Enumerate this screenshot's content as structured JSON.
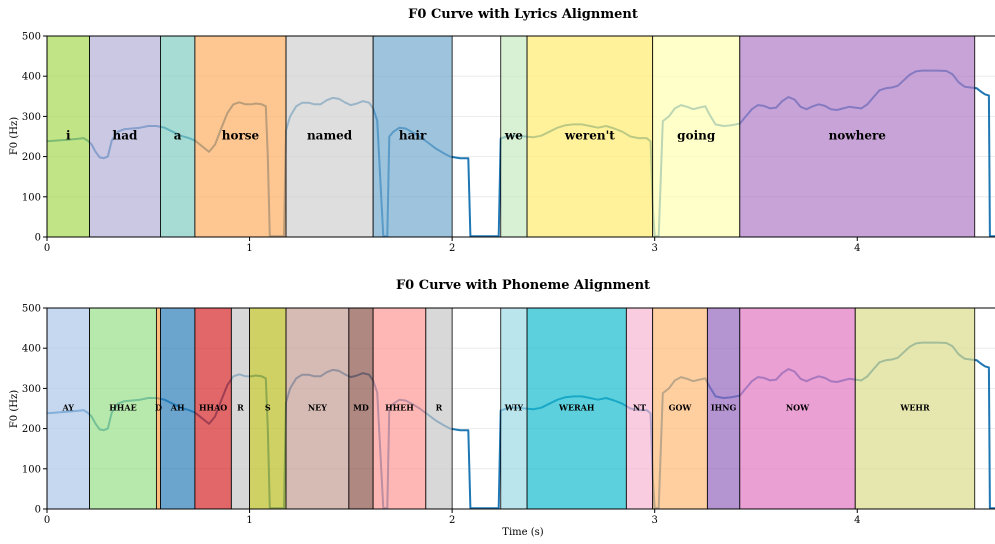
{
  "chart_data": [
    {
      "type": "line",
      "title": "F0 Curve with Lyrics Alignment",
      "xlabel": "",
      "ylabel": "F0 (Hz)",
      "xlim": [
        0,
        4.68
      ],
      "ylim": [
        0,
        500
      ],
      "xticks": [
        0,
        1,
        2,
        3,
        4
      ],
      "yticks": [
        0,
        100,
        200,
        300,
        400,
        500
      ],
      "grid": "horizontal",
      "segments": [
        {
          "label": "i",
          "start": 0.0,
          "end": 0.21,
          "color": "#a6d854"
        },
        {
          "label": "had",
          "start": 0.21,
          "end": 0.56,
          "color": "#b3b0d6"
        },
        {
          "label": "a",
          "start": 0.56,
          "end": 0.73,
          "color": "#80cdc1"
        },
        {
          "label": "horse",
          "start": 0.73,
          "end": 1.18,
          "color": "#fdae61"
        },
        {
          "label": "named",
          "start": 1.18,
          "end": 1.61,
          "color": "#d0d0d0"
        },
        {
          "label": "hair",
          "start": 1.61,
          "end": 2.0,
          "color": "#74a9cf"
        },
        {
          "label": "we",
          "start": 2.24,
          "end": 2.37,
          "color": "#c7e9c0"
        },
        {
          "label": "weren't",
          "start": 2.37,
          "end": 2.99,
          "color": "#ffed6f"
        },
        {
          "label": "going",
          "start": 2.99,
          "end": 3.42,
          "color": "#ffffb3"
        },
        {
          "label": "nowhere",
          "start": 3.42,
          "end": 4.58,
          "color": "#b07cc6"
        }
      ]
    },
    {
      "type": "line",
      "title": "F0 Curve with Phoneme Alignment",
      "xlabel": "Time (s)",
      "ylabel": "F0 (Hz)",
      "xlim": [
        0,
        4.68
      ],
      "ylim": [
        0,
        500
      ],
      "xticks": [
        0,
        1,
        2,
        3,
        4
      ],
      "yticks": [
        0,
        100,
        200,
        300,
        400,
        500
      ],
      "grid": "horizontal",
      "segments": [
        {
          "label": "AY",
          "start": 0.0,
          "end": 0.21,
          "color": "#aec7e8"
        },
        {
          "label": "HHAE",
          "start": 0.21,
          "end": 0.54,
          "color": "#98df8a"
        },
        {
          "label": "D",
          "start": 0.54,
          "end": 0.56,
          "color": "#ff9f43"
        },
        {
          "label": "AH",
          "start": 0.56,
          "end": 0.73,
          "color": "#2c7fb8"
        },
        {
          "label": "HHAO",
          "start": 0.73,
          "end": 0.91,
          "color": "#d62728"
        },
        {
          "label": "R",
          "start": 0.91,
          "end": 1.0,
          "color": "#c7c7c7"
        },
        {
          "label": "S",
          "start": 1.0,
          "end": 1.18,
          "color": "#bcbd22"
        },
        {
          "label": "NEY",
          "start": 1.18,
          "end": 1.49,
          "color": "#c49c94"
        },
        {
          "label": "MD",
          "start": 1.49,
          "end": 1.61,
          "color": "#8c564b"
        },
        {
          "label": "HHEH",
          "start": 1.61,
          "end": 1.87,
          "color": "#ff9896"
        },
        {
          "label": "R",
          "start": 1.87,
          "end": 2.0,
          "color": "#c7c7c7"
        },
        {
          "label": "WIY",
          "start": 2.24,
          "end": 2.37,
          "color": "#9edae5"
        },
        {
          "label": "WERAH",
          "start": 2.37,
          "end": 2.86,
          "color": "#17becf"
        },
        {
          "label": "NT",
          "start": 2.86,
          "end": 2.99,
          "color": "#f7b6d2"
        },
        {
          "label": "GOW",
          "start": 2.99,
          "end": 3.26,
          "color": "#ffbb78"
        },
        {
          "label": "IHNG",
          "start": 3.26,
          "end": 3.42,
          "color": "#9467bd"
        },
        {
          "label": "NOW",
          "start": 3.42,
          "end": 3.99,
          "color": "#e377c2"
        },
        {
          "label": "WEHR",
          "start": 3.99,
          "end": 4.58,
          "color": "#dbdb8d"
        }
      ]
    }
  ],
  "f0_curve": {
    "color": "#1f77b4",
    "points": [
      [
        0.0,
        238
      ],
      [
        0.05,
        240
      ],
      [
        0.1,
        242
      ],
      [
        0.15,
        244
      ],
      [
        0.18,
        246
      ],
      [
        0.2,
        240
      ],
      [
        0.22,
        230
      ],
      [
        0.24,
        212
      ],
      [
        0.26,
        198
      ],
      [
        0.28,
        196
      ],
      [
        0.3,
        200
      ],
      [
        0.32,
        240
      ],
      [
        0.35,
        262
      ],
      [
        0.38,
        268
      ],
      [
        0.42,
        270
      ],
      [
        0.46,
        272
      ],
      [
        0.5,
        276
      ],
      [
        0.54,
        276
      ],
      [
        0.58,
        272
      ],
      [
        0.62,
        262
      ],
      [
        0.66,
        252
      ],
      [
        0.7,
        246
      ],
      [
        0.73,
        240
      ],
      [
        0.76,
        228
      ],
      [
        0.78,
        220
      ],
      [
        0.8,
        212
      ],
      [
        0.83,
        230
      ],
      [
        0.86,
        270
      ],
      [
        0.89,
        308
      ],
      [
        0.92,
        330
      ],
      [
        0.95,
        335
      ],
      [
        0.98,
        330
      ],
      [
        1.01,
        330
      ],
      [
        1.03,
        332
      ],
      [
        1.06,
        330
      ],
      [
        1.08,
        325
      ],
      [
        1.09,
        200
      ],
      [
        1.1,
        2
      ],
      [
        1.17,
        2
      ],
      [
        1.18,
        265
      ],
      [
        1.2,
        300
      ],
      [
        1.23,
        325
      ],
      [
        1.26,
        334
      ],
      [
        1.29,
        334
      ],
      [
        1.32,
        330
      ],
      [
        1.35,
        330
      ],
      [
        1.38,
        340
      ],
      [
        1.41,
        346
      ],
      [
        1.44,
        344
      ],
      [
        1.47,
        335
      ],
      [
        1.5,
        328
      ],
      [
        1.53,
        332
      ],
      [
        1.56,
        338
      ],
      [
        1.59,
        334
      ],
      [
        1.61,
        320
      ],
      [
        1.63,
        290
      ],
      [
        1.66,
        2
      ],
      [
        1.68,
        2
      ],
      [
        1.69,
        250
      ],
      [
        1.71,
        262
      ],
      [
        1.74,
        272
      ],
      [
        1.77,
        270
      ],
      [
        1.8,
        262
      ],
      [
        1.84,
        250
      ],
      [
        1.88,
        235
      ],
      [
        1.92,
        220
      ],
      [
        1.96,
        208
      ],
      [
        1.99,
        200
      ],
      [
        2.04,
        196
      ],
      [
        2.08,
        196
      ],
      [
        2.09,
        2
      ],
      [
        2.23,
        2
      ],
      [
        2.24,
        245
      ],
      [
        2.28,
        252
      ],
      [
        2.32,
        252
      ],
      [
        2.36,
        250
      ],
      [
        2.4,
        248
      ],
      [
        2.44,
        252
      ],
      [
        2.48,
        262
      ],
      [
        2.52,
        272
      ],
      [
        2.56,
        278
      ],
      [
        2.6,
        280
      ],
      [
        2.64,
        280
      ],
      [
        2.68,
        276
      ],
      [
        2.72,
        272
      ],
      [
        2.76,
        276
      ],
      [
        2.8,
        270
      ],
      [
        2.84,
        262
      ],
      [
        2.88,
        250
      ],
      [
        2.92,
        246
      ],
      [
        2.96,
        246
      ],
      [
        2.98,
        238
      ],
      [
        2.99,
        80
      ],
      [
        3.0,
        2
      ],
      [
        3.02,
        2
      ],
      [
        3.04,
        288
      ],
      [
        3.07,
        300
      ],
      [
        3.1,
        320
      ],
      [
        3.13,
        328
      ],
      [
        3.16,
        324
      ],
      [
        3.19,
        318
      ],
      [
        3.22,
        322
      ],
      [
        3.25,
        325
      ],
      [
        3.27,
        305
      ],
      [
        3.3,
        280
      ],
      [
        3.34,
        276
      ],
      [
        3.38,
        278
      ],
      [
        3.42,
        282
      ],
      [
        3.45,
        300
      ],
      [
        3.48,
        318
      ],
      [
        3.51,
        328
      ],
      [
        3.54,
        326
      ],
      [
        3.57,
        320
      ],
      [
        3.6,
        322
      ],
      [
        3.63,
        338
      ],
      [
        3.66,
        348
      ],
      [
        3.69,
        342
      ],
      [
        3.72,
        324
      ],
      [
        3.75,
        318
      ],
      [
        3.78,
        325
      ],
      [
        3.81,
        330
      ],
      [
        3.84,
        326
      ],
      [
        3.87,
        318
      ],
      [
        3.9,
        316
      ],
      [
        3.93,
        320
      ],
      [
        3.96,
        324
      ],
      [
        3.99,
        322
      ],
      [
        4.02,
        320
      ],
      [
        4.05,
        330
      ],
      [
        4.08,
        348
      ],
      [
        4.11,
        365
      ],
      [
        4.14,
        370
      ],
      [
        4.17,
        372
      ],
      [
        4.2,
        376
      ],
      [
        4.23,
        390
      ],
      [
        4.26,
        404
      ],
      [
        4.29,
        412
      ],
      [
        4.32,
        414
      ],
      [
        4.36,
        414
      ],
      [
        4.4,
        414
      ],
      [
        4.44,
        413
      ],
      [
        4.47,
        405
      ],
      [
        4.5,
        385
      ],
      [
        4.53,
        374
      ],
      [
        4.56,
        372
      ],
      [
        4.59,
        370
      ],
      [
        4.61,
        362
      ],
      [
        4.63,
        355
      ],
      [
        4.65,
        352
      ],
      [
        4.655,
        2
      ],
      [
        4.68,
        2
      ]
    ]
  }
}
